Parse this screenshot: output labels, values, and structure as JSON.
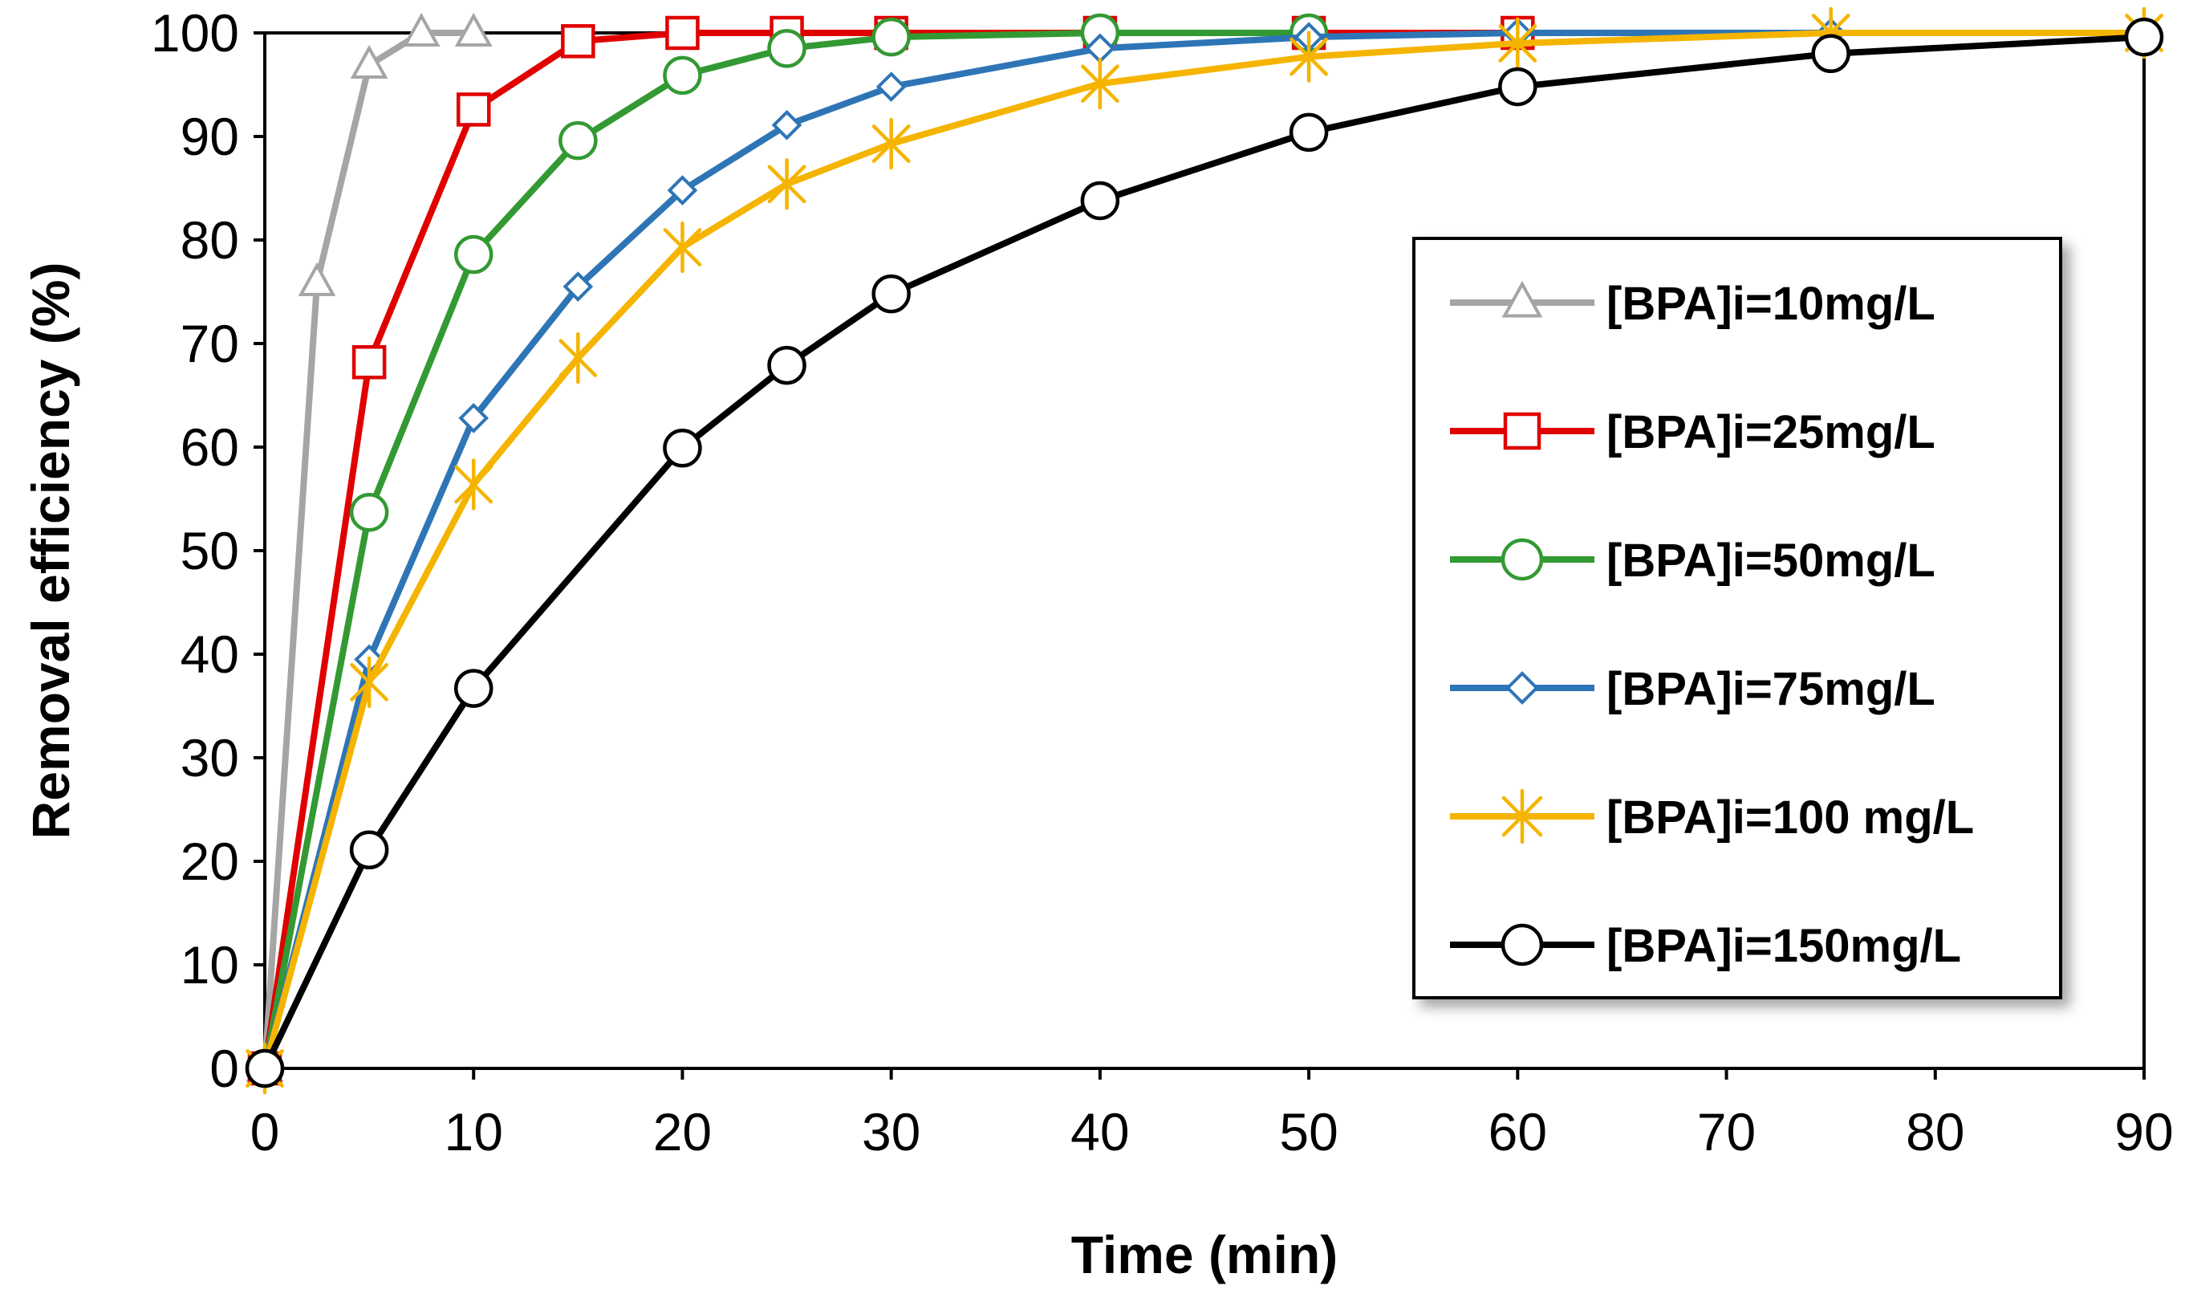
{
  "chart_data": {
    "type": "line",
    "title": "",
    "xlabel": "Time (min)",
    "ylabel": "Removal efficiency (%)",
    "xlim": [
      0,
      90
    ],
    "ylim": [
      0,
      100
    ],
    "xticks": [
      0,
      10,
      20,
      30,
      40,
      50,
      60,
      70,
      80,
      90
    ],
    "yticks": [
      0,
      10,
      20,
      30,
      40,
      50,
      60,
      70,
      80,
      90,
      100
    ],
    "grid": false,
    "legend_position": "right",
    "series": [
      {
        "name": "[BPA]i=10mg/L",
        "color": "#A5A5A5",
        "marker": "triangle",
        "x": [
          0,
          2.5,
          5,
          7.5,
          10
        ],
        "y": [
          0,
          75.9,
          96.9,
          100,
          100
        ]
      },
      {
        "name": "[BPA]i=25mg/L",
        "color": "#E00000",
        "marker": "square",
        "x": [
          0,
          5,
          10,
          15,
          20,
          25,
          30,
          40,
          50,
          60
        ],
        "y": [
          0,
          68.2,
          92.6,
          99.2,
          100,
          100,
          100,
          100,
          100,
          100
        ]
      },
      {
        "name": "[BPA]i=50mg/L",
        "color": "#339933",
        "marker": "circle",
        "x": [
          0,
          5,
          10,
          15,
          20,
          25,
          30,
          40,
          50
        ],
        "y": [
          0,
          53.7,
          78.6,
          89.6,
          95.9,
          98.5,
          99.6,
          100,
          100
        ]
      },
      {
        "name": "[BPA]i=75mg/L",
        "color": "#2E75B6",
        "marker": "diamond",
        "x": [
          0,
          5,
          10,
          15,
          20,
          25,
          30,
          40,
          50,
          60,
          75
        ],
        "y": [
          0,
          39.5,
          62.8,
          75.5,
          84.8,
          91.1,
          94.8,
          98.5,
          99.6,
          100,
          100
        ]
      },
      {
        "name": "[BPA]i=100 mg/L",
        "color": "#F5B400",
        "marker": "star",
        "x": [
          0,
          5,
          10,
          15,
          20,
          25,
          30,
          40,
          50,
          60,
          75,
          90
        ],
        "y": [
          0,
          37.3,
          56.4,
          68.6,
          79.3,
          85.4,
          89.3,
          95.1,
          97.7,
          99.0,
          100,
          100
        ]
      },
      {
        "name": "[BPA]i=150mg/L",
        "color": "#000000",
        "marker": "circle",
        "x": [
          0,
          5,
          10,
          20,
          25,
          30,
          40,
          50,
          60,
          75,
          90
        ],
        "y": [
          0,
          21.1,
          36.7,
          59.9,
          67.9,
          74.8,
          83.8,
          90.4,
          94.8,
          98.0,
          99.6
        ]
      }
    ]
  }
}
